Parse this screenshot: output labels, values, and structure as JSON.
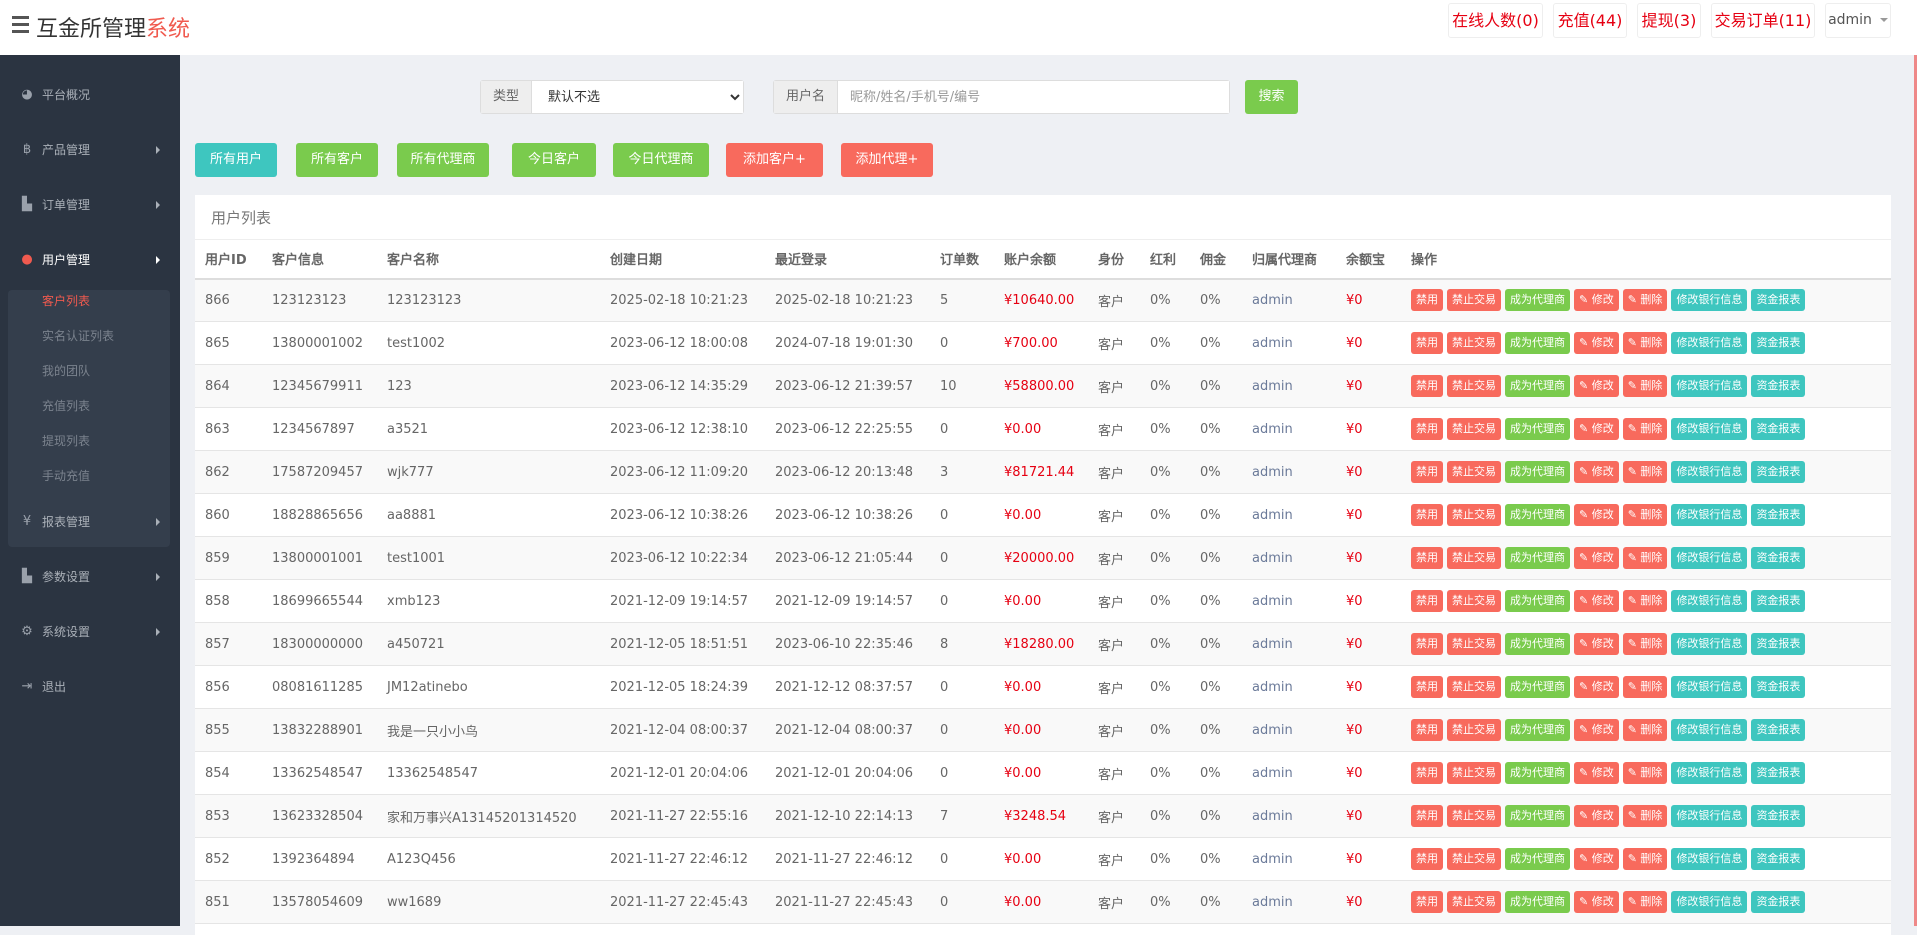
{
  "header": {
    "title_main": "互金所管理",
    "title_highlight": "系统",
    "online": "在线人数(0)",
    "recharge": "充值(44)",
    "withdraw": "提现(3)",
    "orders": "交易订单(11)",
    "user": "admin"
  },
  "sidebar": {
    "items": [
      {
        "label": "平台概况",
        "icon": "dashboard-icon"
      },
      {
        "label": "产品管理",
        "icon": "bitcoin-icon"
      },
      {
        "label": "订单管理",
        "icon": "files-icon"
      },
      {
        "label": "用户管理",
        "icon": "user-icon"
      },
      {
        "label": "报表管理",
        "icon": "yen-icon"
      },
      {
        "label": "参数设置",
        "icon": "files-icon"
      },
      {
        "label": "系统设置",
        "icon": "gears-icon"
      },
      {
        "label": "退出",
        "icon": "sign-out-icon"
      }
    ],
    "sub_items": [
      "客户列表",
      "实名认证列表",
      "我的团队",
      "充值列表",
      "提现列表",
      "手动充值"
    ]
  },
  "search": {
    "type_label": "类型",
    "type_value": "默认不选",
    "name_label": "用户名",
    "name_placeholder": "昵称/姓名/手机号/编号",
    "search_button": "搜索"
  },
  "filters": [
    "所有用户",
    "所有客户",
    "所有代理商",
    "今日客户",
    "今日代理商",
    "添加客户+",
    "添加代理+"
  ],
  "panel": {
    "title": "用户列表"
  },
  "columns": [
    "用户ID",
    "客户信息",
    "客户名称",
    "创建日期",
    "最近登录",
    "订单数",
    "账户余额",
    "身份",
    "红利",
    "佣金",
    "归属代理商",
    "余额宝",
    "操作"
  ],
  "actions": [
    "禁用",
    "禁止交易",
    "成为代理商",
    "✎ 修改",
    "✎ 删除",
    "修改银行信息",
    "资金报表"
  ],
  "colors": {
    "teal": "#3ec6bf",
    "green": "#7acb4d",
    "red": "#f86a5d",
    "money": "#e60012"
  },
  "rows": [
    [
      "866",
      "123123123",
      "123123123",
      "2025-02-18 10:21:23",
      "2025-02-18 10:21:23",
      "5",
      "¥10640.00",
      "客户",
      "0%",
      "0%",
      "admin",
      "¥0"
    ],
    [
      "865",
      "13800001002",
      "test1002",
      "2023-06-12 18:00:08",
      "2024-07-18 19:01:30",
      "0",
      "¥700.00",
      "客户",
      "0%",
      "0%",
      "admin",
      "¥0"
    ],
    [
      "864",
      "12345679911",
      "123",
      "2023-06-12 14:35:29",
      "2023-06-12 21:39:57",
      "10",
      "¥58800.00",
      "客户",
      "0%",
      "0%",
      "admin",
      "¥0"
    ],
    [
      "863",
      "1234567897",
      "a3521",
      "2023-06-12 12:38:10",
      "2023-06-12 22:25:55",
      "0",
      "¥0.00",
      "客户",
      "0%",
      "0%",
      "admin",
      "¥0"
    ],
    [
      "862",
      "17587209457",
      "wjk777",
      "2023-06-12 11:09:20",
      "2023-06-12 20:13:48",
      "3",
      "¥81721.44",
      "客户",
      "0%",
      "0%",
      "admin",
      "¥0"
    ],
    [
      "860",
      "18828865656",
      "aa8881",
      "2023-06-12 10:38:26",
      "2023-06-12 10:38:26",
      "0",
      "¥0.00",
      "客户",
      "0%",
      "0%",
      "admin",
      "¥0"
    ],
    [
      "859",
      "13800001001",
      "test1001",
      "2023-06-12 10:22:34",
      "2023-06-12 21:05:44",
      "0",
      "¥20000.00",
      "客户",
      "0%",
      "0%",
      "admin",
      "¥0"
    ],
    [
      "858",
      "18699665544",
      "xmb123",
      "2021-12-09 19:14:57",
      "2021-12-09 19:14:57",
      "0",
      "¥0.00",
      "客户",
      "0%",
      "0%",
      "admin",
      "¥0"
    ],
    [
      "857",
      "18300000000",
      "a450721",
      "2021-12-05 18:51:51",
      "2023-06-10 22:35:46",
      "8",
      "¥18280.00",
      "客户",
      "0%",
      "0%",
      "admin",
      "¥0"
    ],
    [
      "856",
      "08081611285",
      "JM12atinebo",
      "2021-12-05 18:24:39",
      "2021-12-12 08:37:57",
      "0",
      "¥0.00",
      "客户",
      "0%",
      "0%",
      "admin",
      "¥0"
    ],
    [
      "855",
      "13832288901",
      "我是一只小小鸟",
      "2021-12-04 08:00:37",
      "2021-12-04 08:00:37",
      "0",
      "¥0.00",
      "客户",
      "0%",
      "0%",
      "admin",
      "¥0"
    ],
    [
      "854",
      "13362548547",
      "13362548547",
      "2021-12-01 20:04:06",
      "2021-12-01 20:04:06",
      "0",
      "¥0.00",
      "客户",
      "0%",
      "0%",
      "admin",
      "¥0"
    ],
    [
      "853",
      "13623328504",
      "家和万事兴A13145201314520",
      "2021-11-27 22:55:16",
      "2021-12-10 22:14:13",
      "7",
      "¥3248.54",
      "客户",
      "0%",
      "0%",
      "admin",
      "¥0"
    ],
    [
      "852",
      "1392364894",
      "A123Q456",
      "2021-11-27 22:46:12",
      "2021-11-27 22:46:12",
      "0",
      "¥0.00",
      "客户",
      "0%",
      "0%",
      "admin",
      "¥0"
    ],
    [
      "851",
      "13578054609",
      "ww1689",
      "2021-11-27 22:45:43",
      "2021-11-27 22:45:43",
      "0",
      "¥0.00",
      "客户",
      "0%",
      "0%",
      "admin",
      "¥0"
    ]
  ]
}
